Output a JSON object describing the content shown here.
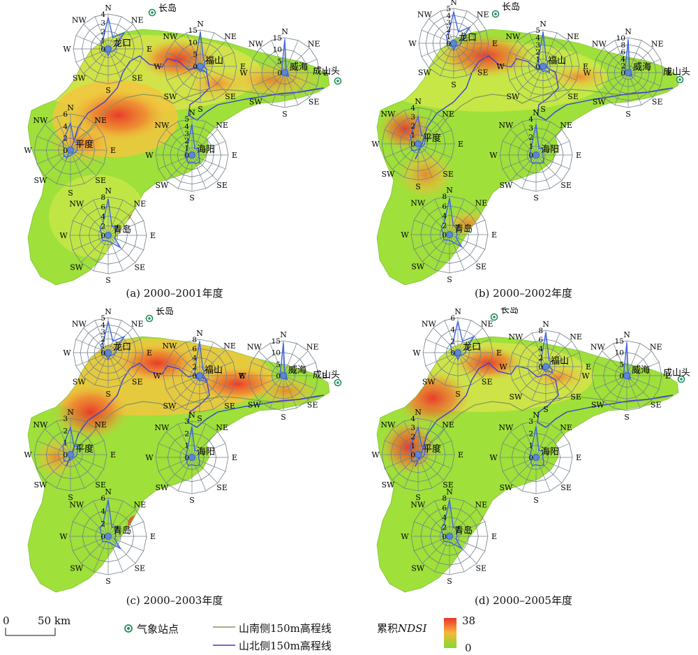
{
  "figure": {
    "panels": [
      {
        "id": "a",
        "caption": "(a) 2000–2001年度"
      },
      {
        "id": "b",
        "caption": "(b) 2000–2002年度"
      },
      {
        "id": "c",
        "caption": "(c) 2000–2003年度"
      },
      {
        "id": "d",
        "caption": "(d) 2000–2005年度"
      }
    ]
  },
  "station_labels": {
    "changdao": "长岛",
    "chengshantou": "成山头"
  },
  "roses": {
    "direction_labels": [
      "N",
      "NE",
      "E",
      "SE",
      "S",
      "SW",
      "W",
      "NW"
    ],
    "stations": [
      {
        "name": "龙口",
        "rings_by_panel": [
          [
            0,
            1,
            2,
            3,
            4
          ],
          [
            0,
            1,
            2,
            3,
            4,
            5
          ],
          [
            0,
            1,
            2,
            3,
            4,
            5
          ],
          [
            0,
            2,
            4,
            6
          ]
        ]
      },
      {
        "name": "福山",
        "rings_by_panel": [
          [
            0,
            5,
            10,
            15
          ],
          [
            0,
            1,
            2,
            3,
            4,
            5
          ],
          [
            0,
            2,
            4,
            6,
            8
          ],
          [
            0,
            2,
            4,
            6,
            8
          ]
        ]
      },
      {
        "name": "威海",
        "rings_by_panel": [
          [
            0,
            5,
            10,
            15
          ],
          [
            0,
            2,
            4,
            6,
            8,
            10
          ],
          [
            0,
            5,
            10,
            15
          ],
          [
            0,
            5,
            10,
            15
          ]
        ]
      },
      {
        "name": "平度",
        "rings_by_panel": [
          [
            0,
            2,
            4,
            6
          ],
          [
            0,
            1,
            2,
            3,
            4
          ],
          [
            0,
            1,
            2,
            3
          ],
          [
            0,
            1,
            2,
            3,
            4
          ]
        ]
      },
      {
        "name": "海阳",
        "rings_by_panel": [
          [
            0,
            1,
            2,
            3,
            4,
            5
          ],
          [
            0,
            1,
            2,
            3,
            4
          ],
          [
            0,
            1,
            2,
            3
          ],
          [
            0,
            1,
            2,
            3
          ]
        ]
      },
      {
        "name": "青岛",
        "rings_by_panel": [
          [
            0,
            2,
            4,
            6,
            8
          ],
          [
            0,
            2,
            4,
            6,
            8
          ],
          [
            0,
            2,
            4,
            6
          ],
          [
            0,
            2,
            4,
            6,
            8
          ]
        ]
      }
    ]
  },
  "legend": {
    "scale_zero": "0",
    "scale_label": "50 km",
    "station_label": "气象站点",
    "south_contour_label": "山南侧150m高程线",
    "north_contour_label": "山北侧150m高程线",
    "ndsi_label_prefix": "累积",
    "ndsi_label_italic": "NDSI",
    "ndsi_max": "38",
    "ndsi_min": "0",
    "colors": {
      "ndsi_high": "#e8342a",
      "ndsi_mid": "#f6b83c",
      "ndsi_low": "#7fdc2c",
      "south_contour": "#7f9a5a",
      "north_contour": "#3a3fd0",
      "rose_grid": "#6f7e8a",
      "rose_data": "#3c64e0",
      "station": "#1e8f58"
    }
  }
}
